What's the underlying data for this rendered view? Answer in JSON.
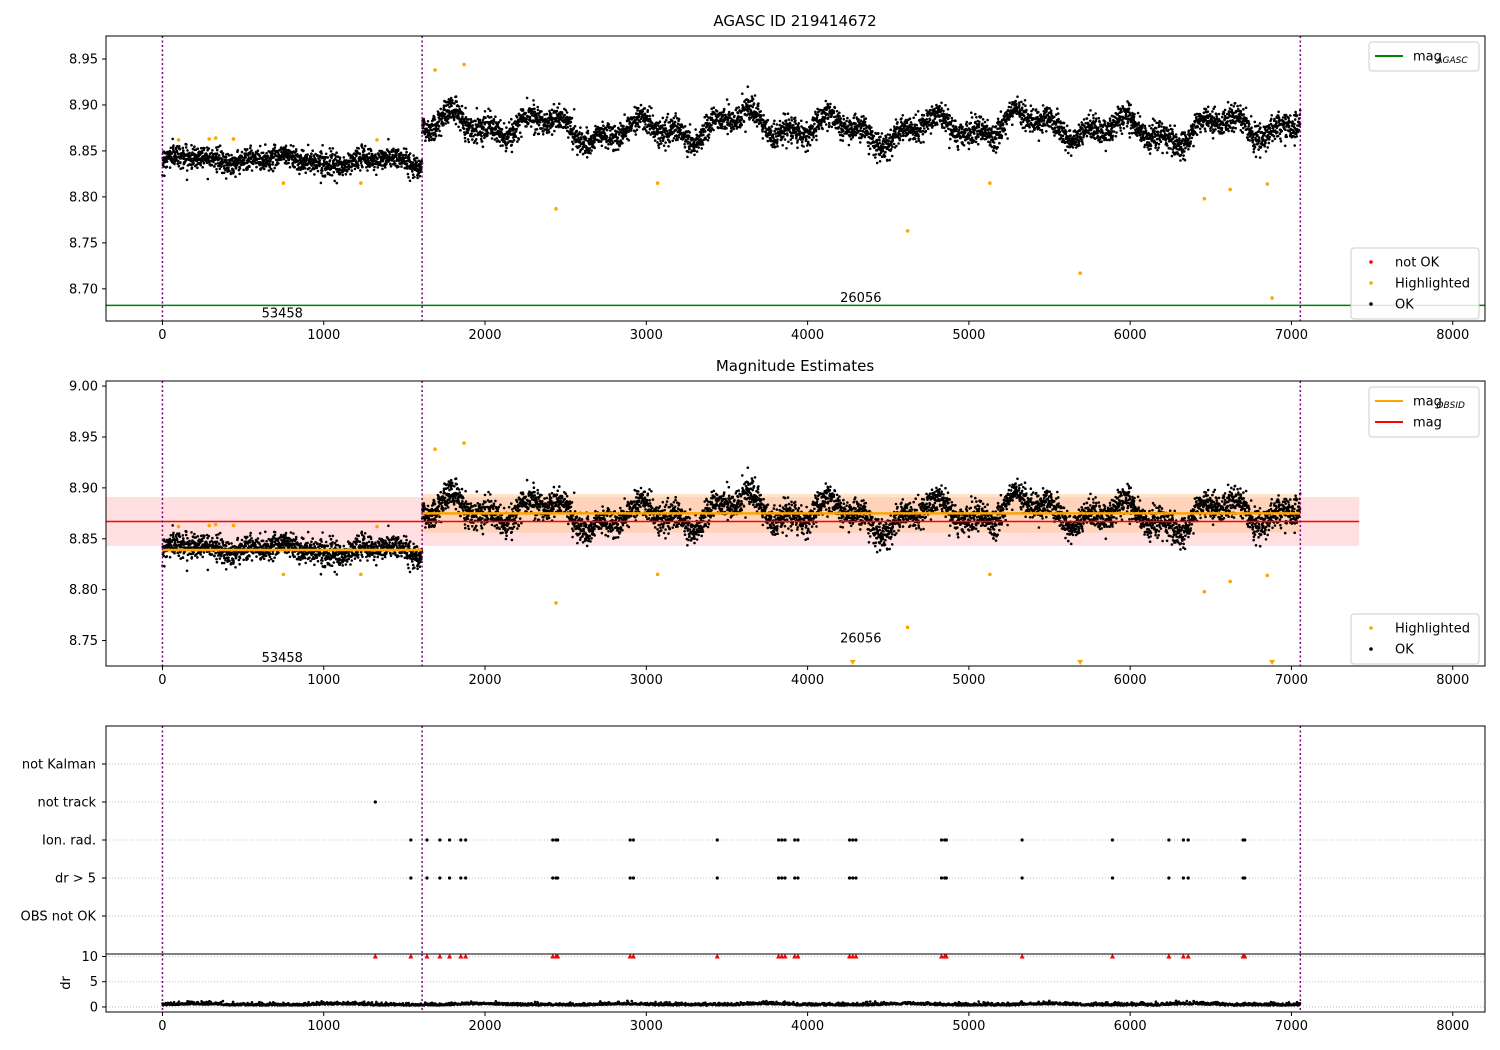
{
  "figure": {
    "background": "#ffffff"
  },
  "colors": {
    "ok": "#000000",
    "highlighted": "#ffa500",
    "not_ok": "#ff0000",
    "agasc_line": "#008000",
    "mag_line": "#ff0000",
    "mag_obsid_line": "#ffa500",
    "obs_boundary": "#800080",
    "mag_band": "#ffb0b0",
    "obsid_band": "#ffc896"
  },
  "chart_data": [
    {
      "type": "scatter",
      "title": "AGASC ID 219414672",
      "xlim": [
        -350,
        8200
      ],
      "ylim": [
        8.665,
        8.975
      ],
      "xticks": [
        0,
        1000,
        2000,
        3000,
        4000,
        5000,
        6000,
        7000,
        8000
      ],
      "yticks": [
        8.7,
        8.75,
        8.8,
        8.85,
        8.9,
        8.95
      ],
      "ytick_labels": [
        "8.70",
        "8.75",
        "8.80",
        "8.85",
        "8.90",
        "8.95"
      ],
      "obs_boundaries": [
        0,
        1610,
        7055
      ],
      "obs_labels": [
        {
          "text": "53458",
          "x": 805,
          "y": 8.673
        },
        {
          "text": "26056",
          "x": 4330,
          "y": 8.69
        }
      ],
      "mag_agasc": 8.682,
      "segments": [
        {
          "x0": 0,
          "x1": 1610,
          "mean": 8.84,
          "amp": 0.007,
          "noise": 0.006
        },
        {
          "x0": 1610,
          "x1": 7055,
          "mean": 8.875,
          "amp": 0.02,
          "noise": 0.007
        }
      ],
      "highlighted_points": [
        {
          "x": 100,
          "y": 8.862
        },
        {
          "x": 290,
          "y": 8.863
        },
        {
          "x": 330,
          "y": 8.864
        },
        {
          "x": 440,
          "y": 8.863
        },
        {
          "x": 750,
          "y": 8.815
        },
        {
          "x": 1230,
          "y": 8.815
        },
        {
          "x": 1330,
          "y": 8.862
        },
        {
          "x": 1690,
          "y": 8.938
        },
        {
          "x": 1870,
          "y": 8.944
        },
        {
          "x": 2440,
          "y": 8.787
        },
        {
          "x": 3070,
          "y": 8.815
        },
        {
          "x": 4620,
          "y": 8.763
        },
        {
          "x": 5130,
          "y": 8.815
        },
        {
          "x": 5690,
          "y": 8.717
        },
        {
          "x": 6460,
          "y": 8.798
        },
        {
          "x": 6620,
          "y": 8.808
        },
        {
          "x": 6850,
          "y": 8.814
        },
        {
          "x": 6880,
          "y": 8.69
        }
      ],
      "legend_top": [
        {
          "label": "mag",
          "subscript": "AGASC",
          "style": "line",
          "color": "#008000"
        }
      ],
      "legend_bottom": [
        {
          "label": "not OK",
          "style": "dot",
          "color": "#ff0000"
        },
        {
          "label": "Highlighted",
          "style": "dot",
          "color": "#ffa500"
        },
        {
          "label": "OK",
          "style": "dot",
          "color": "#000000"
        }
      ]
    },
    {
      "type": "scatter",
      "title": "Magnitude Estimates",
      "xlim": [
        -350,
        8200
      ],
      "ylim": [
        8.725,
        9.005
      ],
      "xticks": [
        0,
        1000,
        2000,
        3000,
        4000,
        5000,
        6000,
        7000,
        8000
      ],
      "yticks": [
        8.75,
        8.8,
        8.85,
        8.9,
        8.95,
        9.0
      ],
      "ytick_labels": [
        "8.75",
        "8.80",
        "8.85",
        "8.90",
        "8.95",
        "9.00"
      ],
      "obs_boundaries": [
        0,
        1610,
        7055
      ],
      "obs_labels": [
        {
          "text": "53458",
          "x": 805,
          "y": 8.733
        },
        {
          "text": "26056",
          "x": 4330,
          "y": 8.752
        }
      ],
      "mag": 8.867,
      "mag_band": [
        8.843,
        8.891
      ],
      "mag_band_x": [
        -350,
        7420
      ],
      "mag_obsid": [
        {
          "x0": 0,
          "x1": 1610,
          "mag": 8.839,
          "band": [
            8.836,
            8.842
          ]
        },
        {
          "x0": 1610,
          "x1": 7055,
          "mag": 8.875,
          "band": [
            8.856,
            8.894
          ]
        }
      ],
      "limit_markers_x": [
        4280,
        5690,
        6880
      ],
      "legend_top": [
        {
          "label": "mag",
          "subscript": "OBSID",
          "style": "line",
          "color": "#ffa500"
        },
        {
          "label": "mag",
          "style": "line",
          "color": "#ff0000"
        }
      ],
      "legend_bottom": [
        {
          "label": "Highlighted",
          "style": "dot",
          "color": "#ffa500"
        },
        {
          "label": "OK",
          "style": "dot",
          "color": "#000000"
        }
      ]
    },
    {
      "type": "scatter",
      "title": "",
      "xlim": [
        -350,
        8200
      ],
      "categories": [
        "not Kalman",
        "not track",
        "Ion. rad.",
        "dr > 5",
        "OBS not OK"
      ],
      "obs_boundaries": [
        0,
        1610,
        7055
      ],
      "flags": {
        "not track": [
          1320
        ],
        "Ion. rad.": [
          1540,
          1640,
          1720,
          1780,
          1850,
          1880,
          2420,
          2440,
          2450,
          2900,
          2920,
          3440,
          3820,
          3840,
          3860,
          3920,
          3940,
          4260,
          4280,
          4300,
          4830,
          4850,
          4860,
          5330,
          5890,
          6240,
          6330,
          6360,
          6700,
          6710
        ],
        "dr > 5": [
          1540,
          1640,
          1720,
          1780,
          1850,
          1880,
          2420,
          2440,
          2450,
          2900,
          2920,
          3440,
          3820,
          3840,
          3860,
          3920,
          3940,
          4260,
          4280,
          4300,
          4830,
          4850,
          4860,
          5330,
          5890,
          6240,
          6330,
          6360,
          6700,
          6710
        ]
      }
    },
    {
      "type": "scatter",
      "title": "",
      "ylabel": "dr",
      "xlim": [
        -350,
        8200
      ],
      "ylim": [
        -1,
        10.5
      ],
      "xticks": [
        0,
        1000,
        2000,
        3000,
        4000,
        5000,
        6000,
        7000,
        8000
      ],
      "yticks": [
        0,
        5,
        10
      ],
      "obs_boundaries": [
        0,
        1610,
        7055
      ],
      "clipped_x": [
        1320,
        1540,
        1640,
        1720,
        1780,
        1850,
        1880,
        2420,
        2440,
        2450,
        2900,
        2920,
        3440,
        3820,
        3840,
        3860,
        3920,
        3940,
        4260,
        4280,
        4300,
        4830,
        4850,
        4860,
        5330,
        5890,
        6240,
        6330,
        6360,
        6700,
        6710
      ],
      "typical_dr": 0.3
    }
  ]
}
